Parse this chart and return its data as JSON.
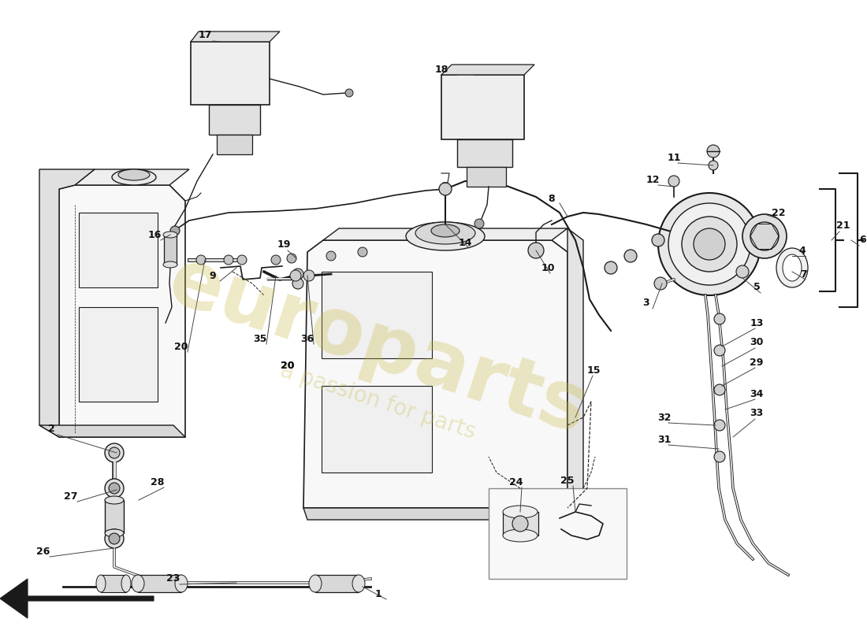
{
  "bg_color": "#ffffff",
  "line_color": "#1a1a1a",
  "fig_width": 11.0,
  "fig_height": 8.0,
  "dpi": 100,
  "watermark_color": "#c8b840",
  "watermark_alpha": 0.3
}
